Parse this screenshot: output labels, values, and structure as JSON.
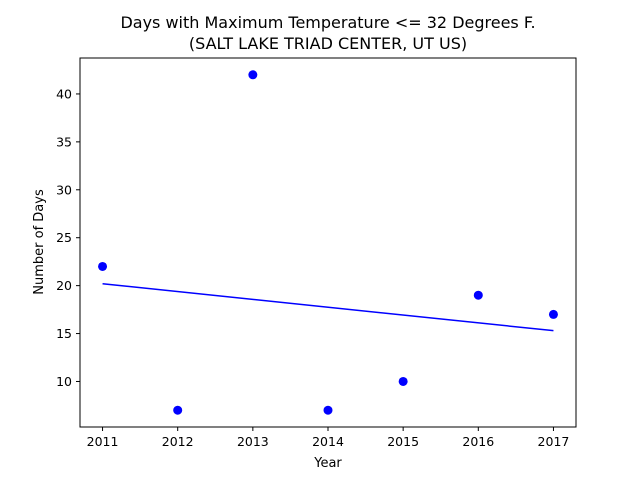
{
  "chart_data": {
    "type": "scatter",
    "title_line1": "Days with Maximum Temperature <= 32 Degrees F.",
    "title_line2": "(SALT LAKE TRIAD CENTER, UT US)",
    "xlabel": "Year",
    "ylabel": "Number of Days",
    "x": [
      2011,
      2012,
      2013,
      2014,
      2015,
      2016,
      2017
    ],
    "y": [
      22,
      7,
      42,
      7,
      10,
      19,
      17
    ],
    "trend": {
      "x": [
        2011,
        2017
      ],
      "y": [
        20.2,
        15.3
      ]
    },
    "xlim": [
      2010.7,
      2017.3
    ],
    "ylim": [
      5.25,
      43.75
    ],
    "xticks": [
      2011,
      2012,
      2013,
      2014,
      2015,
      2016,
      2017
    ],
    "yticks": [
      10,
      15,
      20,
      25,
      30,
      35,
      40
    ],
    "grid": false,
    "point_color": "#0000ff",
    "line_color": "#0000ff"
  }
}
